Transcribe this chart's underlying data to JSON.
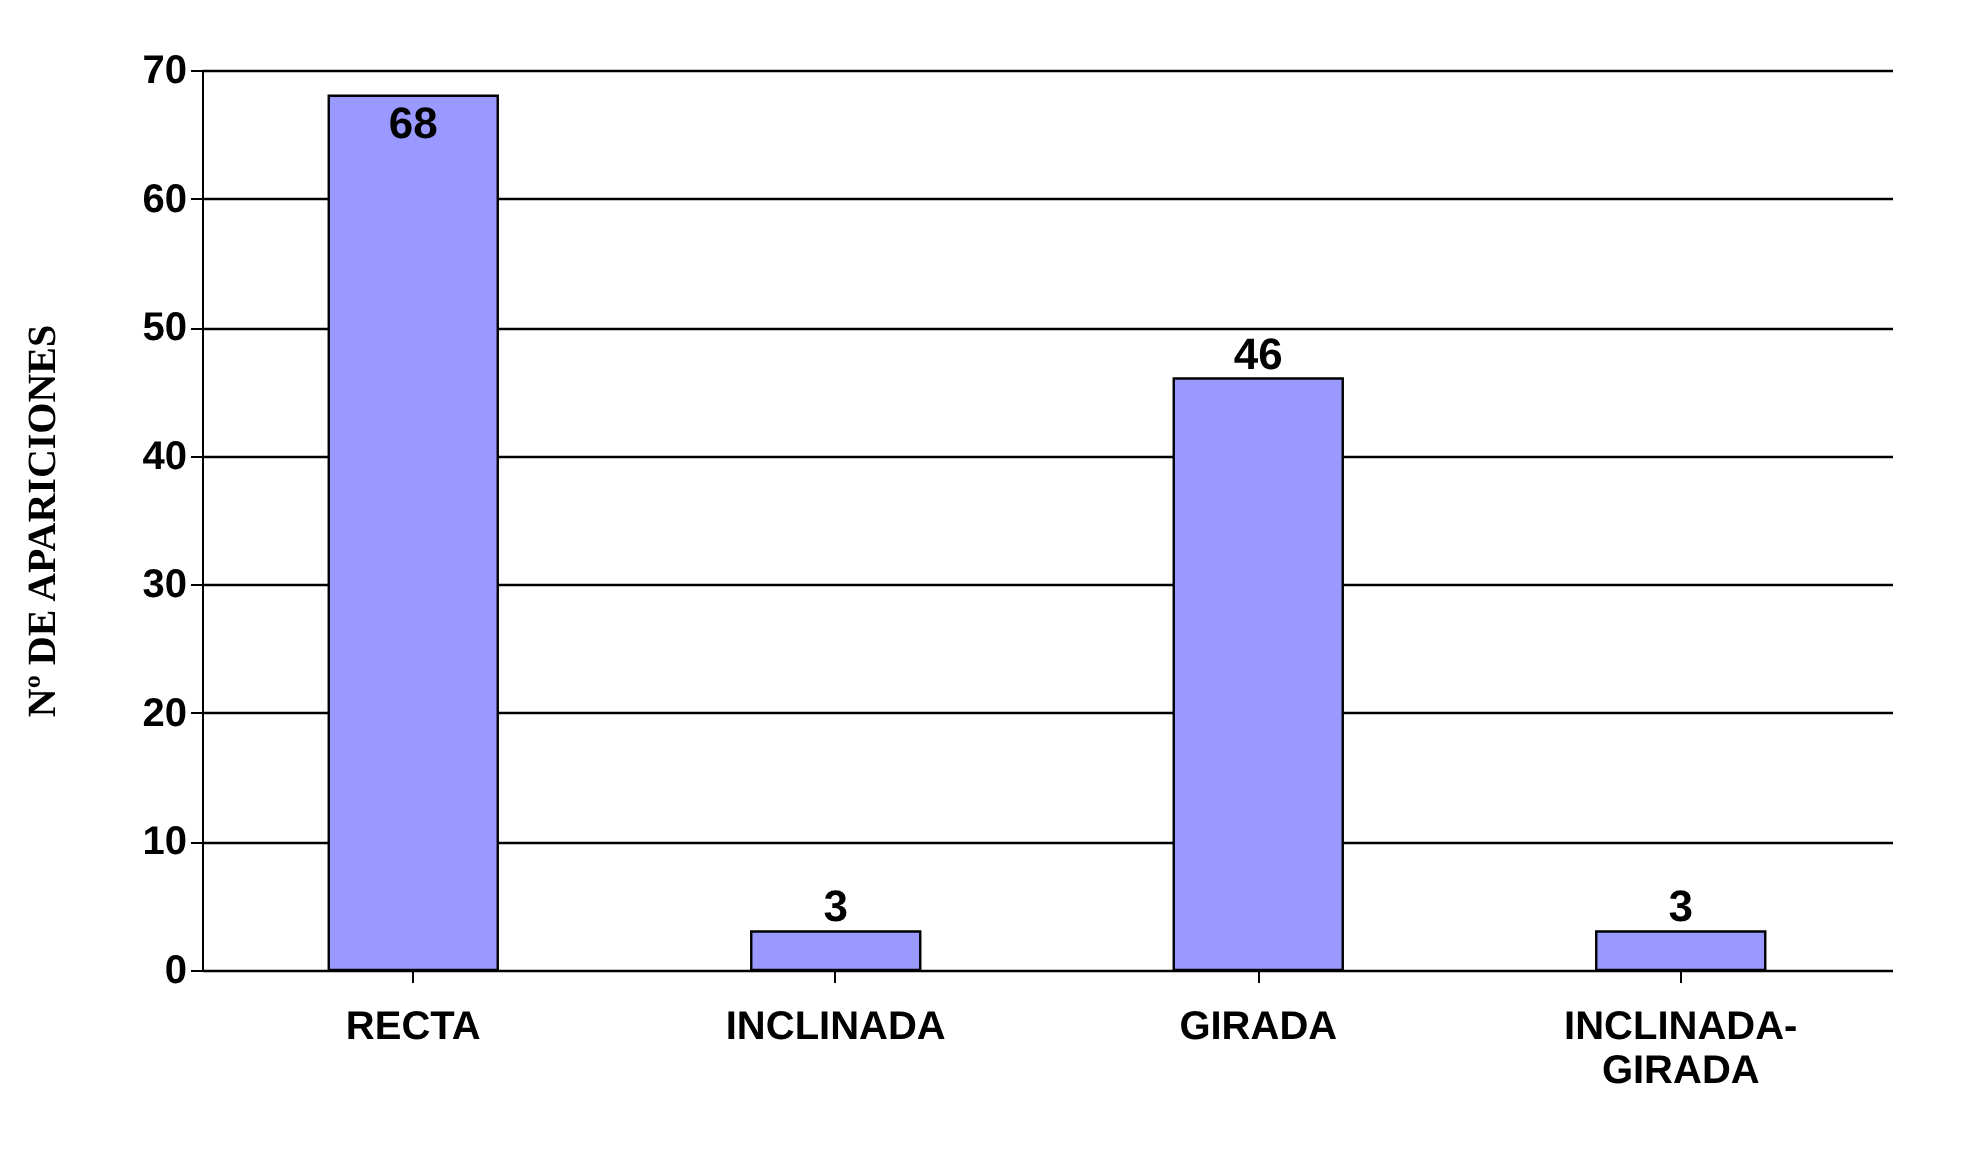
{
  "chart_data": {
    "type": "bar",
    "ylabel": "Nº DE APARICIONES",
    "categories": [
      "RECTA",
      "INCLINADA",
      "GIRADA",
      "INCLINADA-GIRADA"
    ],
    "values": [
      68,
      3,
      46,
      3
    ],
    "color": "#9999ff",
    "ylim": [
      0,
      70
    ],
    "yticks": [
      0,
      10,
      20,
      30,
      40,
      50,
      60,
      70
    ],
    "grid": "y",
    "data_labels": true
  }
}
